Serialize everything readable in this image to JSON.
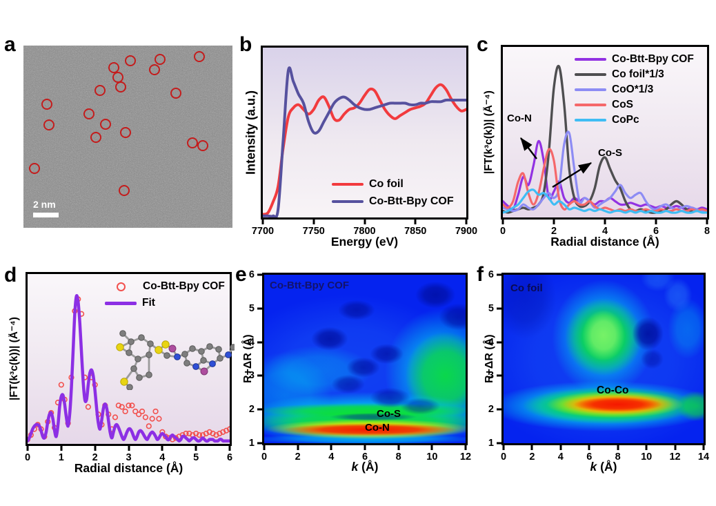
{
  "colors": {
    "red": "#f23b3e",
    "navy": "#56519e",
    "purple": "#9232e2",
    "gray": "#4e4e50",
    "periwinkle": "#8d8cf4",
    "salmon": "#f5686a",
    "sky": "#3fbdf4",
    "fit_purple": "#8c2fe4",
    "scatter_red": "#f2504d",
    "tem_circle_red": "#c41c1c",
    "map": {
      "red": "#f51800",
      "orange": "#ff7c00",
      "yellow": "#ffe600",
      "green": "#0ce22e",
      "lightgreen": "#8af56e",
      "cyan": "#00cdf0",
      "lightblue": "#2e86fa",
      "darkblue": "#000e9e",
      "blue": "#0523ef"
    }
  },
  "panels": {
    "a": {
      "letter": "a",
      "scalebar_label": "2 nm",
      "circles": [
        [
          51.2,
          8.3
        ],
        [
          65.3,
          7.6
        ],
        [
          84.2,
          6.1
        ],
        [
          43.2,
          12.1
        ],
        [
          62.7,
          13.3
        ],
        [
          45.2,
          17.4
        ],
        [
          46.5,
          22.7
        ],
        [
          36.6,
          24.6
        ],
        [
          72.9,
          26.1
        ],
        [
          11.2,
          32.2
        ],
        [
          31.4,
          37.5
        ],
        [
          12.2,
          43.6
        ],
        [
          39.3,
          43.2
        ],
        [
          48.8,
          47.7
        ],
        [
          34.7,
          50.4
        ],
        [
          80.9,
          53.4
        ],
        [
          85.8,
          54.9
        ],
        [
          5.3,
          67.4
        ],
        [
          48.2,
          79.5
        ]
      ]
    },
    "b": {
      "letter": "b"
    },
    "c": {
      "letter": "c"
    },
    "d": {
      "letter": "d"
    },
    "e": {
      "letter": "e",
      "xlabel_k": "k",
      "xlabel_unit": " (Å)"
    },
    "f": {
      "letter": "f",
      "xlabel_k": "k",
      "xlabel_unit": " (Å)"
    }
  },
  "chart_data": [
    {
      "id": "b",
      "type": "line",
      "title": "",
      "xlabel": "Energy (eV)",
      "ylabel": "Intensity (a.u.)",
      "xlim": [
        7700,
        7900
      ],
      "ylim": [
        0,
        1.1
      ],
      "xticks": [
        "7700",
        "7750",
        "7800",
        "7850",
        "7900"
      ],
      "x_start": 7700,
      "x_step": 5,
      "legend_position": "bottom-right",
      "series": [
        {
          "name": "Co foil",
          "color": "#f23b3e",
          "width": 4,
          "values": [
            0.02,
            0.03,
            0.1,
            0.2,
            0.45,
            0.65,
            0.71,
            0.73,
            0.7,
            0.67,
            0.7,
            0.76,
            0.78,
            0.72,
            0.64,
            0.63,
            0.67,
            0.7,
            0.71,
            0.74,
            0.79,
            0.83,
            0.82,
            0.76,
            0.7,
            0.66,
            0.64,
            0.66,
            0.68,
            0.7,
            0.71,
            0.72,
            0.74,
            0.79,
            0.84,
            0.86,
            0.83,
            0.77,
            0.72,
            0.69,
            0.7
          ]
        },
        {
          "name": "Co-Btt-Bpy COF",
          "color": "#56519e",
          "width": 4,
          "values": [
            0.01,
            0.01,
            0.01,
            0.05,
            0.5,
            0.95,
            0.88,
            0.8,
            0.74,
            0.62,
            0.55,
            0.56,
            0.62,
            0.68,
            0.74,
            0.77,
            0.78,
            0.76,
            0.73,
            0.71,
            0.7,
            0.7,
            0.71,
            0.72,
            0.73,
            0.74,
            0.74,
            0.74,
            0.74,
            0.73,
            0.73,
            0.74,
            0.74,
            0.75,
            0.75,
            0.75,
            0.76,
            0.76,
            0.76,
            0.76,
            0.76
          ]
        }
      ]
    },
    {
      "id": "c",
      "type": "line",
      "title": "",
      "xlabel": "Radial distance (Å)",
      "ylabel": "|FT(k³c(k))| (Å⁻⁴)",
      "xlim": [
        0,
        8
      ],
      "ylim": [
        0,
        1.05
      ],
      "xticks": [
        "0",
        "2",
        "4",
        "6",
        "8"
      ],
      "x_start": 0,
      "x_step": 0.2,
      "legend_position": "top-right",
      "annotations": {
        "co_n": "Co-N",
        "co_s": "Co-S"
      },
      "series": [
        {
          "name": "Co-Btt-Bpy COF",
          "color": "#9232e2",
          "width": 3.2,
          "values": [
            0.1,
            0.07,
            0.05,
            0.14,
            0.25,
            0.2,
            0.32,
            0.47,
            0.35,
            0.12,
            0.16,
            0.22,
            0.12,
            0.09,
            0.12,
            0.1,
            0.12,
            0.1,
            0.08,
            0.1,
            0.1,
            0.12,
            0.1,
            0.08,
            0.08,
            0.09,
            0.08,
            0.07,
            0.08,
            0.07,
            0.06,
            0.07,
            0.06,
            0.06,
            0.07,
            0.06,
            0.05,
            0.06,
            0.05,
            0.06,
            0.05
          ]
        },
        {
          "name": "Co foil*1/3",
          "color": "#4e4e50",
          "width": 3.4,
          "values": [
            0.04,
            0.03,
            0.04,
            0.05,
            0.06,
            0.05,
            0.06,
            0.08,
            0.15,
            0.4,
            0.8,
            0.93,
            0.7,
            0.3,
            0.12,
            0.07,
            0.07,
            0.1,
            0.18,
            0.32,
            0.37,
            0.3,
            0.23,
            0.18,
            0.1,
            0.05,
            0.04,
            0.05,
            0.04,
            0.03,
            0.03,
            0.04,
            0.05,
            0.08,
            0.1,
            0.08,
            0.05,
            0.04,
            0.04,
            0.05,
            0.04
          ]
        },
        {
          "name": "CoO*1/3",
          "color": "#8d8cf4",
          "width": 3.2,
          "values": [
            0.06,
            0.05,
            0.04,
            0.05,
            0.08,
            0.06,
            0.05,
            0.08,
            0.12,
            0.15,
            0.12,
            0.18,
            0.45,
            0.52,
            0.3,
            0.1,
            0.12,
            0.1,
            0.06,
            0.08,
            0.1,
            0.12,
            0.16,
            0.2,
            0.15,
            0.12,
            0.14,
            0.15,
            0.1,
            0.06,
            0.05,
            0.07,
            0.08,
            0.06,
            0.05,
            0.06,
            0.07,
            0.06,
            0.05,
            0.04,
            0.04
          ]
        },
        {
          "name": "CoS",
          "color": "#f5686a",
          "width": 3.2,
          "values": [
            0.08,
            0.06,
            0.1,
            0.22,
            0.27,
            0.15,
            0.08,
            0.15,
            0.3,
            0.42,
            0.35,
            0.12,
            0.05,
            0.08,
            0.1,
            0.08,
            0.08,
            0.1,
            0.07,
            0.05,
            0.06,
            0.05,
            0.04,
            0.05,
            0.04,
            0.05,
            0.04,
            0.04,
            0.05,
            0.04,
            0.04,
            0.05,
            0.04,
            0.04,
            0.05,
            0.04,
            0.04,
            0.05,
            0.04,
            0.05,
            0.04
          ]
        },
        {
          "name": "CoPc",
          "color": "#3fbdf4",
          "width": 3.2,
          "values": [
            0.03,
            0.04,
            0.06,
            0.08,
            0.12,
            0.16,
            0.17,
            0.14,
            0.15,
            0.12,
            0.08,
            0.1,
            0.08,
            0.05,
            0.06,
            0.05,
            0.04,
            0.05,
            0.04,
            0.05,
            0.04,
            0.03,
            0.04,
            0.04,
            0.03,
            0.04,
            0.03,
            0.04,
            0.03,
            0.04,
            0.03,
            0.03,
            0.04,
            0.03,
            0.03,
            0.04,
            0.03,
            0.03,
            0.04,
            0.03,
            0.03
          ]
        }
      ]
    },
    {
      "id": "d",
      "type": "line",
      "title": "",
      "xlabel": "Radial distance (Å)",
      "ylabel": "|FT(k³c(k))| (Å⁻⁴)",
      "xlim": [
        0,
        6
      ],
      "ylim": [
        0,
        1.15
      ],
      "xticks": [
        "0",
        "1",
        "2",
        "3",
        "4",
        "5",
        "6"
      ],
      "x_start": 0,
      "x_step": 0.05,
      "legend_position": "top-right",
      "series": [
        {
          "name": "Co-Btt-Bpy COF",
          "kind": "scatter",
          "color": "#f2504d",
          "x_start": 0,
          "x_step": 0.1,
          "values": [
            0.03,
            0.06,
            0.1,
            0.13,
            0.1,
            0.05,
            0.15,
            0.21,
            0.11,
            0.28,
            0.4,
            0.3,
            0.14,
            0.45,
            0.9,
            0.98,
            0.88,
            0.45,
            0.25,
            0.45,
            0.4,
            0.2,
            0.13,
            0.26,
            0.2,
            0.1,
            0.18,
            0.26,
            0.25,
            0.22,
            0.26,
            0.26,
            0.22,
            0.2,
            0.22,
            0.18,
            0.12,
            0.17,
            0.22,
            0.17,
            0.08,
            0.05,
            0.04,
            0.03,
            0.04,
            0.05,
            0.06,
            0.07,
            0.07,
            0.06,
            0.07,
            0.06,
            0.06,
            0.07,
            0.08,
            0.07,
            0.06,
            0.07,
            0.08,
            0.09,
            0.1
          ]
        },
        {
          "name": "Fit",
          "color": "#8c2fe4",
          "width": 4.5,
          "values": [
            0.02,
            0.04,
            0.07,
            0.1,
            0.12,
            0.13,
            0.13,
            0.12,
            0.09,
            0.05,
            0.04,
            0.08,
            0.15,
            0.2,
            0.21,
            0.17,
            0.09,
            0.05,
            0.12,
            0.25,
            0.32,
            0.33,
            0.27,
            0.18,
            0.12,
            0.2,
            0.38,
            0.62,
            0.88,
            1.0,
            0.96,
            0.82,
            0.62,
            0.42,
            0.3,
            0.3,
            0.4,
            0.48,
            0.5,
            0.46,
            0.36,
            0.24,
            0.14,
            0.1,
            0.16,
            0.24,
            0.27,
            0.24,
            0.16,
            0.08,
            0.04,
            0.08,
            0.12,
            0.13,
            0.11,
            0.08,
            0.05,
            0.03,
            0.05,
            0.08,
            0.1,
            0.1,
            0.08,
            0.05,
            0.03,
            0.05,
            0.08,
            0.09,
            0.08,
            0.06,
            0.04,
            0.03,
            0.05,
            0.07,
            0.08,
            0.07,
            0.05,
            0.03,
            0.04,
            0.06,
            0.07,
            0.06,
            0.05,
            0.03,
            0.03,
            0.05,
            0.06,
            0.05,
            0.04,
            0.03,
            0.02,
            0.03,
            0.05,
            0.05,
            0.04,
            0.03,
            0.02,
            0.03,
            0.04,
            0.04,
            0.03,
            0.02,
            0.02,
            0.03,
            0.04,
            0.03,
            0.02,
            0.02,
            0.03,
            0.03,
            0.03,
            0.02,
            0.02,
            0.02,
            0.03,
            0.03,
            0.02,
            0.02,
            0.02,
            0.02,
            0.02
          ]
        }
      ]
    },
    {
      "id": "e",
      "type": "heatmap",
      "title": "Co-Btt-Bpy COF",
      "xlabel": "k (Å)",
      "ylabel": "R+ΔR (Å)",
      "xlim": [
        0,
        12
      ],
      "ylim": [
        1,
        6
      ],
      "xticks": [
        "0",
        "2",
        "4",
        "6",
        "8",
        "10",
        "12"
      ],
      "yticks": [
        "6",
        "5",
        "4",
        "3",
        "2",
        "1"
      ],
      "base": "#0523ef",
      "annotations": {
        "title": "Co-Btt-Bpy COF",
        "co_s": "Co-S",
        "co_n": "Co-N"
      },
      "blobs": [
        {
          "k": 5.0,
          "r": 3.2,
          "rk": 7.0,
          "rr": 2.2,
          "c": "lightblue",
          "o": 0.3
        },
        {
          "k": 1.2,
          "r": 2.4,
          "rk": 2.8,
          "rr": 1.3,
          "c": "cyan",
          "o": 0.4
        },
        {
          "k": 3.2,
          "r": 3.15,
          "rk": 3.2,
          "rr": 0.75,
          "c": "cyan",
          "o": 0.35
        },
        {
          "k": 10.6,
          "r": 3.1,
          "rk": 3.4,
          "rr": 1.9,
          "c": "cyan",
          "o": 0.7
        },
        {
          "k": 10.8,
          "r": 3.0,
          "rk": 2.4,
          "rr": 1.3,
          "c": "green",
          "o": 0.85
        },
        {
          "k": 6.2,
          "r": 1.72,
          "rk": 7.6,
          "rr": 0.8,
          "c": "cyan",
          "o": 0.9
        },
        {
          "k": 6.2,
          "r": 1.62,
          "rk": 7.2,
          "rr": 0.5,
          "c": "green",
          "o": 0.95
        },
        {
          "k": 6.2,
          "r": 1.97,
          "rk": 6.8,
          "rr": 0.22,
          "c": "green",
          "o": 0.85
        },
        {
          "k": 6.0,
          "r": 1.12,
          "rk": 7.0,
          "rr": 0.16,
          "c": "cyan",
          "o": 0.6
        },
        {
          "k": 6.3,
          "r": 1.42,
          "rk": 6.2,
          "rr": 0.3,
          "c": "yellow",
          "o": 0.95
        },
        {
          "k": 6.3,
          "r": 1.4,
          "rk": 5.2,
          "rr": 0.19,
          "c": "red",
          "o": 1
        },
        {
          "k": 6.5,
          "r": 1.78,
          "rk": 2.6,
          "rr": 0.12,
          "c": "darkblue",
          "o": 0.5
        },
        {
          "k": 3.9,
          "r": 4.1,
          "rk": 1.1,
          "rr": 0.35,
          "c": "darkblue",
          "o": 0.8
        },
        {
          "k": 5.5,
          "r": 4.95,
          "rk": 1.1,
          "rr": 0.3,
          "c": "darkblue",
          "o": 0.7
        },
        {
          "k": 5.9,
          "r": 3.25,
          "rk": 1.0,
          "rr": 0.3,
          "c": "darkblue",
          "o": 0.7
        },
        {
          "k": 5.0,
          "r": 2.75,
          "rk": 1.0,
          "rr": 0.28,
          "c": "darkblue",
          "o": 0.6
        },
        {
          "k": 7.3,
          "r": 3.65,
          "rk": 1.0,
          "rr": 0.3,
          "c": "darkblue",
          "o": 0.7
        },
        {
          "k": 7.5,
          "r": 2.35,
          "rk": 1.2,
          "rr": 0.3,
          "c": "darkblue",
          "o": 0.6
        },
        {
          "k": 10.2,
          "r": 5.4,
          "rk": 1.2,
          "rr": 0.4,
          "c": "darkblue",
          "o": 0.8
        },
        {
          "k": 11.6,
          "r": 4.75,
          "rk": 1.2,
          "rr": 0.4,
          "c": "darkblue",
          "o": 0.7
        },
        {
          "k": 9.3,
          "r": 2.1,
          "rk": 1.2,
          "rr": 0.25,
          "c": "darkblue",
          "o": 0.5
        }
      ]
    },
    {
      "id": "f",
      "type": "heatmap",
      "title": "Co foil",
      "xlabel": "k (Å)",
      "ylabel": "R+ΔR (Å)",
      "xlim": [
        0,
        14
      ],
      "ylim": [
        1,
        6
      ],
      "xticks": [
        "0",
        "2",
        "4",
        "6",
        "8",
        "10",
        "12",
        "14"
      ],
      "yticks": [
        "6",
        "5",
        "4",
        "3",
        "2",
        "1"
      ],
      "base": "#0523ef",
      "annotations": {
        "title": "Co foil",
        "co_co": "Co-Co"
      },
      "blobs": [
        {
          "k": 7.0,
          "r": 3.5,
          "rk": 9.0,
          "rr": 2.8,
          "c": "lightblue",
          "o": 0.28
        },
        {
          "k": 1.5,
          "r": 5.3,
          "rk": 2.2,
          "rr": 1.2,
          "c": "darkblue",
          "o": 0.35
        },
        {
          "k": 7.0,
          "r": 4.15,
          "rk": 3.6,
          "rr": 1.7,
          "c": "cyan",
          "o": 0.75
        },
        {
          "k": 7.0,
          "r": 4.15,
          "rk": 2.7,
          "rr": 1.15,
          "c": "green",
          "o": 0.9
        },
        {
          "k": 7.0,
          "r": 4.2,
          "rk": 1.5,
          "rr": 0.75,
          "c": "lightgreen",
          "o": 0.85
        },
        {
          "k": 10.1,
          "r": 4.25,
          "rk": 1.1,
          "rr": 0.5,
          "c": "darkblue",
          "o": 0.9
        },
        {
          "k": 10.4,
          "r": 3.5,
          "rk": 0.8,
          "rr": 0.3,
          "c": "darkblue",
          "o": 0.5
        },
        {
          "k": 12.9,
          "r": 4.4,
          "rk": 1.4,
          "rr": 0.9,
          "c": "cyan",
          "o": 0.35
        },
        {
          "k": 12.2,
          "r": 5.4,
          "rk": 1.0,
          "rr": 0.5,
          "c": "lightblue",
          "o": 0.45
        },
        {
          "k": 10.8,
          "r": 5.9,
          "rk": 1.2,
          "rr": 0.4,
          "c": "lightblue",
          "o": 0.4
        },
        {
          "k": 7.0,
          "r": 2.1,
          "rk": 8.0,
          "rr": 0.75,
          "c": "cyan",
          "o": 0.95
        },
        {
          "k": 7.5,
          "r": 2.12,
          "rk": 6.2,
          "rr": 0.55,
          "c": "green",
          "o": 1
        },
        {
          "k": 13.5,
          "r": 2.1,
          "rk": 1.4,
          "rr": 0.45,
          "c": "green",
          "o": 0.7
        },
        {
          "k": 7.8,
          "r": 2.15,
          "rk": 4.8,
          "rr": 0.4,
          "c": "yellow",
          "o": 1
        },
        {
          "k": 8.0,
          "r": 2.15,
          "rk": 3.9,
          "rr": 0.3,
          "c": "orange",
          "o": 1
        },
        {
          "k": 8.0,
          "r": 2.15,
          "rk": 3.1,
          "rr": 0.22,
          "c": "red",
          "o": 1
        }
      ]
    }
  ]
}
